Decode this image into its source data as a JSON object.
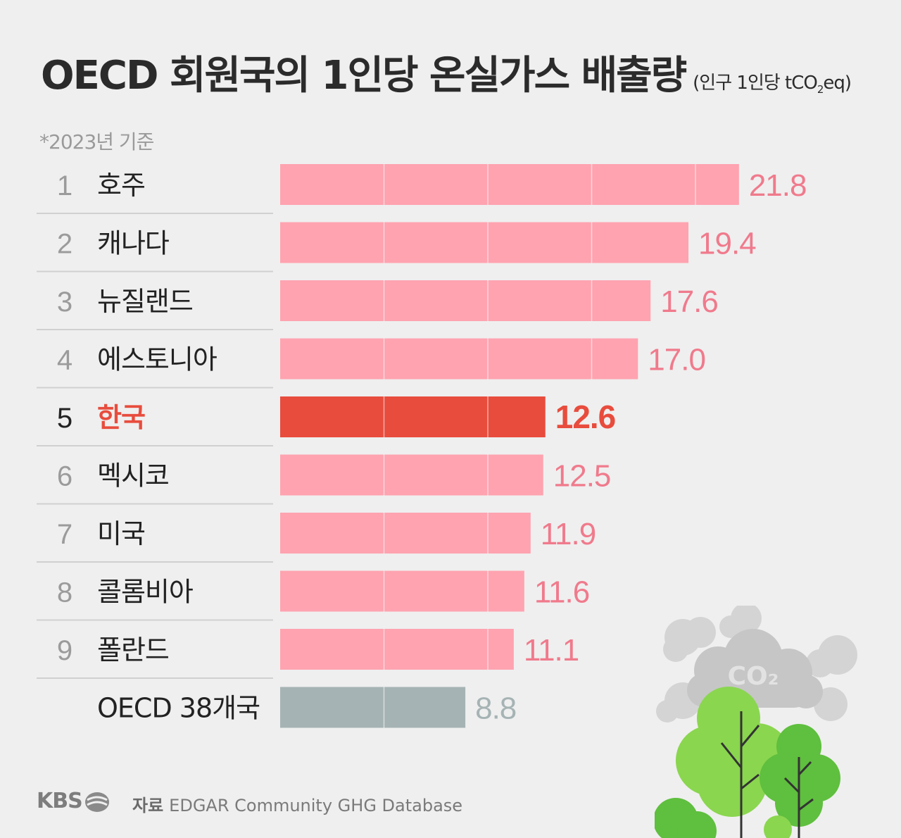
{
  "title": "OECD 회원국의 1인당 온실가스 배출량",
  "unit_prefix": "(인구 1인당 tCO",
  "unit_sub": "2",
  "unit_suffix": "eq)",
  "note": "*2023년 기준",
  "source_label": "자료",
  "source_text": "EDGAR Community GHG Database",
  "brand": "KBS",
  "co2_label": "CO₂",
  "colors": {
    "bar": "#ffa3b0",
    "highlight_bar": "#e84c3d",
    "oecd_bar": "#a6b3b4",
    "value": "#f07a8c",
    "highlight_value": "#e84c3d",
    "oecd_value": "#a6b3b4"
  },
  "chart_data": {
    "type": "bar",
    "orientation": "horizontal",
    "ranks": [
      "1",
      "2",
      "3",
      "4",
      "5",
      "6",
      "7",
      "8",
      "9",
      ""
    ],
    "categories": [
      "호주",
      "캐나다",
      "뉴질랜드",
      "에스토니아",
      "한국",
      "멕시코",
      "미국",
      "콜롬비아",
      "폴란드",
      "OECD 38개국"
    ],
    "values": [
      21.8,
      19.4,
      17.6,
      17.0,
      12.6,
      12.5,
      11.9,
      11.6,
      11.1,
      8.8
    ],
    "labels": [
      "21.8",
      "19.4",
      "17.6",
      "17.0",
      "12.6",
      "12.5",
      "11.9",
      "11.6",
      "11.1",
      "8.8"
    ],
    "highlight": "한국",
    "reference": "OECD 38개국",
    "grid": true,
    "title": "OECD 회원국의 1인당 온실가스 배출량",
    "xlabel": "",
    "ylabel": ""
  }
}
